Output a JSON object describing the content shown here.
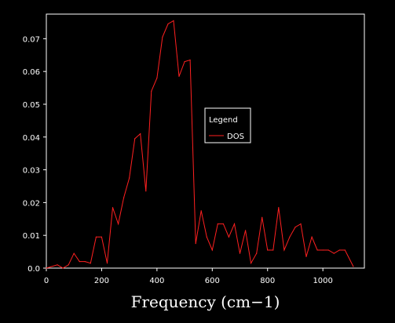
{
  "chart_data": {
    "type": "line",
    "title": "",
    "xlabel": "Frequency (cm−1)",
    "ylabel": "",
    "xlim": [
      0,
      1150
    ],
    "ylim": [
      0,
      0.0775
    ],
    "xticks": [
      0,
      200,
      400,
      600,
      800,
      1000
    ],
    "yticks": [
      0,
      0.01,
      0.02,
      0.03,
      0.04,
      0.05,
      0.06,
      0.07
    ],
    "xtick_labels": [
      "0",
      "200",
      "400",
      "600",
      "800",
      "1000"
    ],
    "ytick_labels": [
      "0.0",
      "0.01",
      "0.02",
      "0.03",
      "0.04",
      "0.05",
      "0.06",
      "0.07"
    ],
    "grid": false,
    "legend": {
      "title": "Legend",
      "placement": "center-right"
    },
    "colors": {
      "background": "#000000",
      "axes": "#ffffff",
      "series": "#ff2020"
    },
    "series": [
      {
        "name": "DOS",
        "x": [
          0,
          40,
          60,
          80,
          100,
          120,
          140,
          160,
          180,
          200,
          220,
          240,
          260,
          280,
          300,
          320,
          340,
          360,
          380,
          400,
          420,
          440,
          460,
          480,
          500,
          520,
          540,
          560,
          580,
          600,
          620,
          640,
          660,
          680,
          700,
          720,
          740,
          760,
          780,
          800,
          820,
          840,
          860,
          880,
          900,
          920,
          940,
          960,
          980,
          1000,
          1020,
          1040,
          1060,
          1080,
          1110
        ],
        "values": [
          0.0,
          0.001,
          0.0,
          0.001,
          0.0045,
          0.002,
          0.002,
          0.0015,
          0.0095,
          0.0095,
          0.0015,
          0.0185,
          0.0135,
          0.0215,
          0.0275,
          0.0395,
          0.041,
          0.0235,
          0.054,
          0.058,
          0.0705,
          0.0745,
          0.0755,
          0.0585,
          0.063,
          0.0635,
          0.0075,
          0.0175,
          0.0095,
          0.0055,
          0.0135,
          0.0135,
          0.0095,
          0.0135,
          0.0045,
          0.0115,
          0.0015,
          0.0045,
          0.0155,
          0.0055,
          0.0055,
          0.0185,
          0.0055,
          0.0095,
          0.0125,
          0.0135,
          0.0035,
          0.0095,
          0.0055,
          0.0055,
          0.0055,
          0.0045,
          0.0055,
          0.0055,
          0.0005
        ]
      }
    ]
  }
}
